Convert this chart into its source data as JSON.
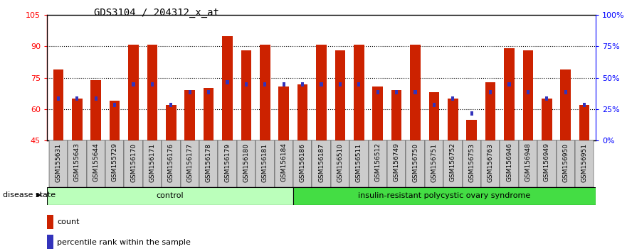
{
  "title": "GDS3104 / 204312_x_at",
  "samples": [
    "GSM155631",
    "GSM155643",
    "GSM155644",
    "GSM155729",
    "GSM156170",
    "GSM156171",
    "GSM156176",
    "GSM156177",
    "GSM156178",
    "GSM156179",
    "GSM156180",
    "GSM156181",
    "GSM156184",
    "GSM156186",
    "GSM156187",
    "GSM156510",
    "GSM156511",
    "GSM156512",
    "GSM156749",
    "GSM156750",
    "GSM156751",
    "GSM156752",
    "GSM156753",
    "GSM156763",
    "GSM156946",
    "GSM156948",
    "GSM156949",
    "GSM156950",
    "GSM156951"
  ],
  "red_values": [
    79,
    65,
    74,
    64,
    91,
    91,
    62,
    69,
    70,
    95,
    88,
    91,
    71,
    72,
    91,
    88,
    91,
    71,
    69,
    91,
    68,
    65,
    55,
    73,
    89,
    88,
    65,
    79,
    62
  ],
  "blue_values": [
    65,
    65,
    65,
    62,
    72,
    72,
    62,
    68,
    68,
    73,
    72,
    72,
    72,
    72,
    72,
    72,
    72,
    68,
    68,
    68,
    62,
    65,
    58,
    68,
    72,
    68,
    65,
    68,
    62
  ],
  "control_count": 13,
  "disease_count": 16,
  "control_label": "control",
  "disease_label": "insulin-resistant polycystic ovary syndrome",
  "disease_state_label": "disease state",
  "legend_red": "count",
  "legend_blue": "percentile rank within the sample",
  "ymin": 45,
  "ymax": 105,
  "bar_color": "#CC2200",
  "blue_color": "#3333BB",
  "control_bg": "#BBFFBB",
  "disease_bg": "#44DD44",
  "tick_fontsize": 6.5,
  "label_fontsize": 8
}
